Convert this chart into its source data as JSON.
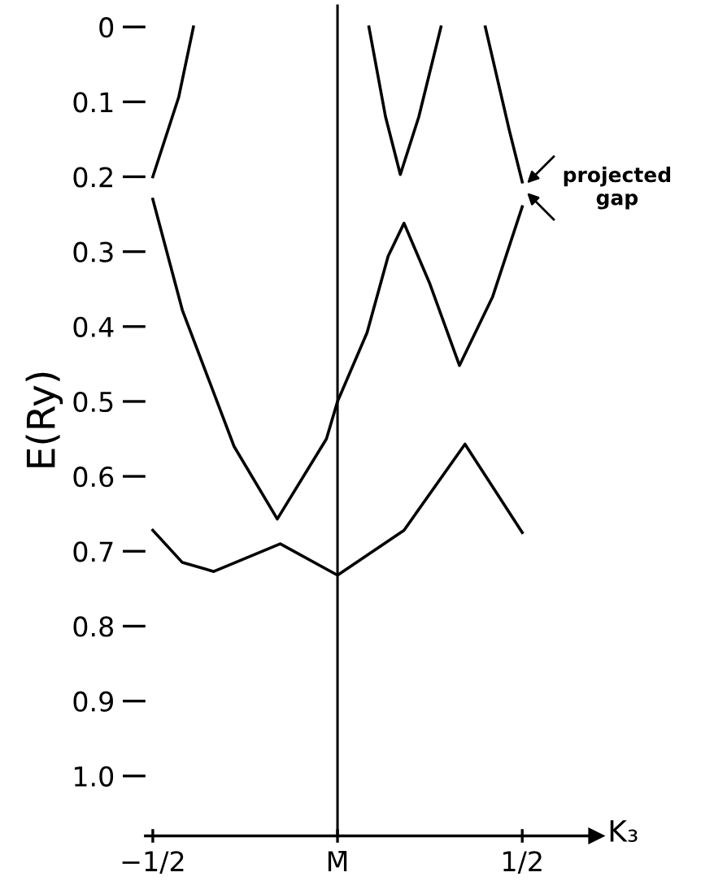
{
  "chart_data": {
    "type": "line",
    "ylabel": "E(Ry)",
    "xlabel": "K₃",
    "xlim": [
      -0.52,
      0.7
    ],
    "ylim": [
      1.08,
      -0.03
    ],
    "xticks": [
      {
        "value": -0.5,
        "label": "−1/2"
      },
      {
        "value": 0,
        "label": "M̄"
      },
      {
        "value": 0.5,
        "label": "1/2"
      }
    ],
    "yticks": [
      0,
      0.1,
      0.2,
      0.3,
      0.4,
      0.5,
      0.6,
      0.7,
      0.8,
      0.9,
      {
        "value": 1.0,
        "label": "1.0"
      }
    ],
    "grid": false,
    "legend": false,
    "marker": "none",
    "line_style": "solid",
    "series": [
      {
        "color": "#000000",
        "x": [
          -0.39,
          -0.43,
          -0.5
        ],
        "values": [
          0.0,
          0.094,
          0.2
        ]
      },
      {
        "color": "#000000",
        "x": [
          -0.5,
          -0.42,
          -0.28,
          -0.163,
          -0.03,
          0.0,
          0.08,
          0.137,
          0.18,
          0.25,
          0.33,
          0.42,
          0.5
        ],
        "values": [
          0.23,
          0.378,
          0.56,
          0.657,
          0.55,
          0.5,
          0.408,
          0.306,
          0.262,
          0.343,
          0.452,
          0.36,
          0.24
        ]
      },
      {
        "color": "#000000",
        "x": [
          0.085,
          0.13,
          0.17,
          0.22,
          0.28
        ],
        "values": [
          0.0,
          0.12,
          0.197,
          0.12,
          0.0
        ]
      },
      {
        "color": "#000000",
        "x": [
          0.4,
          0.465,
          0.5
        ],
        "values": [
          0.0,
          0.138,
          0.207
        ]
      },
      {
        "color": "#000000",
        "x": [
          -0.5,
          -0.42,
          -0.335,
          -0.155,
          0.0,
          0.18,
          0.345,
          0.5
        ],
        "values": [
          0.672,
          0.715,
          0.727,
          0.69,
          0.732,
          0.672,
          0.557,
          0.675
        ]
      }
    ],
    "ref_lines": [
      {
        "axis": "x",
        "value": 0,
        "color": "#000000",
        "line_style": "solid"
      }
    ],
    "annotations": [
      {
        "text": "projected\ngap",
        "x": 0.5,
        "y": 0.215
      }
    ]
  }
}
